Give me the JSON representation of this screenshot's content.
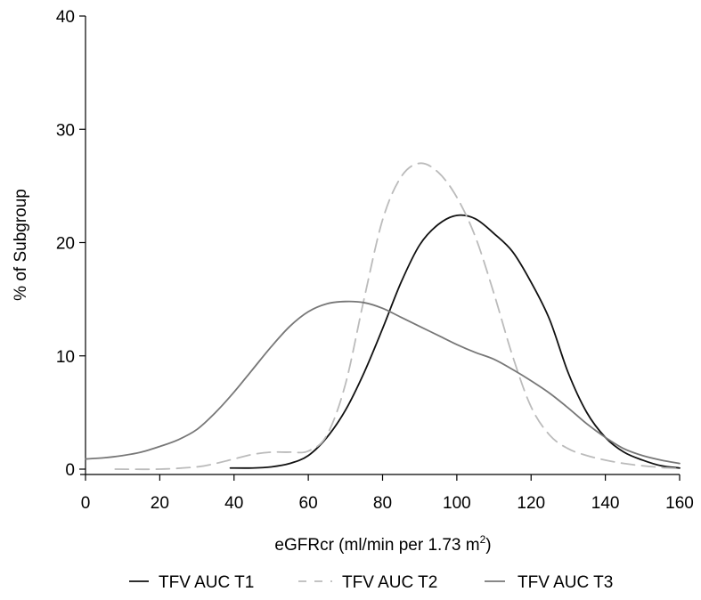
{
  "chart_data": {
    "type": "line",
    "xlabel": "eGFRcr (ml/min per 1.73 m",
    "xlabel_superscript": "2",
    "xlabel_suffix": ")",
    "ylabel": "% of Subgroup",
    "xlim": [
      0,
      160
    ],
    "ylim": [
      0,
      40
    ],
    "x_ticks": [
      "0",
      "20",
      "40",
      "60",
      "80",
      "100",
      "120",
      "140",
      "160"
    ],
    "y_ticks": [
      "0",
      "10",
      "20",
      "30",
      "40"
    ],
    "grid": false,
    "legend_position": "bottom",
    "series": [
      {
        "name": "TFV AUC T1",
        "color": "#111111",
        "dash": "solid",
        "x": [
          39,
          45,
          50,
          55,
          60,
          65,
          70,
          75,
          80,
          85,
          90,
          95,
          100,
          105,
          110,
          115,
          120,
          125,
          130,
          135,
          140,
          145,
          150,
          155,
          160
        ],
        "y": [
          0.1,
          0.1,
          0.2,
          0.5,
          1.2,
          2.8,
          5.2,
          8.5,
          12.4,
          16.5,
          19.8,
          21.6,
          22.4,
          22.1,
          20.8,
          19.2,
          16.5,
          13.2,
          8.5,
          5.0,
          2.8,
          1.5,
          0.8,
          0.3,
          0.1
        ]
      },
      {
        "name": "TFV AUC T2",
        "color": "#bbbbbb",
        "dash": "dashed",
        "x": [
          8,
          20,
          30,
          35,
          40,
          45,
          50,
          55,
          60,
          65,
          70,
          75,
          80,
          85,
          90,
          95,
          100,
          105,
          110,
          115,
          120,
          125,
          130,
          135,
          140,
          145,
          150,
          155,
          160
        ],
        "y": [
          0.0,
          0.0,
          0.2,
          0.5,
          0.9,
          1.3,
          1.5,
          1.5,
          1.6,
          3.0,
          7.5,
          15.0,
          22.0,
          25.8,
          27.0,
          26.2,
          24.0,
          20.5,
          15.5,
          10.0,
          5.5,
          3.0,
          1.8,
          1.2,
          0.8,
          0.5,
          0.3,
          0.15,
          0.05
        ]
      },
      {
        "name": "TFV AUC T3",
        "color": "#777777",
        "dash": "solid",
        "x": [
          0,
          5,
          10,
          15,
          20,
          25,
          30,
          35,
          40,
          45,
          50,
          55,
          60,
          65,
          70,
          75,
          80,
          85,
          90,
          95,
          100,
          105,
          110,
          115,
          120,
          125,
          130,
          135,
          140,
          145,
          150,
          155,
          160
        ],
        "y": [
          0.9,
          1.0,
          1.2,
          1.5,
          2.0,
          2.6,
          3.5,
          5.0,
          6.8,
          8.8,
          10.8,
          12.6,
          13.9,
          14.6,
          14.8,
          14.7,
          14.2,
          13.4,
          12.6,
          11.8,
          11.0,
          10.3,
          9.7,
          8.8,
          7.8,
          6.7,
          5.4,
          4.0,
          2.8,
          1.8,
          1.2,
          0.8,
          0.5
        ]
      }
    ]
  }
}
